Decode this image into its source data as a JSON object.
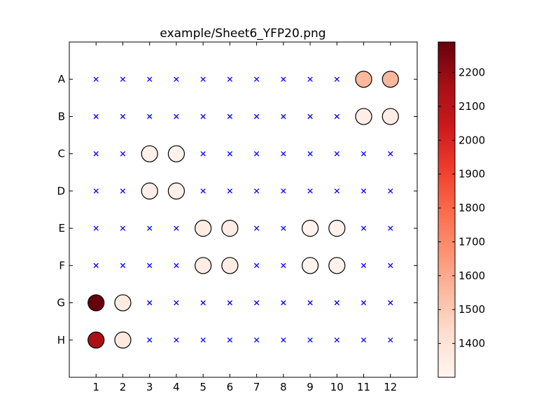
{
  "chart_data": {
    "type": "scatter",
    "title": "example/Sheet6_YFP20.png",
    "xlabel": "",
    "ylabel": "",
    "x_ticks": [
      "1",
      "2",
      "3",
      "4",
      "5",
      "6",
      "7",
      "8",
      "9",
      "10",
      "11",
      "12"
    ],
    "y_ticks": [
      "A",
      "B",
      "C",
      "D",
      "E",
      "F",
      "G",
      "H"
    ],
    "xlim": [
      0,
      13
    ],
    "ylim_rows": [
      "",
      "A",
      "B",
      "C",
      "D",
      "E",
      "F",
      "G",
      "H",
      ""
    ],
    "grid": false,
    "empty_marker": "x",
    "empty_marker_color": "#0000ff",
    "colormap": "Reds",
    "colorbar": {
      "min": 1300,
      "max": 2290,
      "ticks": [
        "1400",
        "1500",
        "1600",
        "1700",
        "1800",
        "1900",
        "2000",
        "2100",
        "2200"
      ]
    },
    "points": [
      {
        "row": "A",
        "col": 11,
        "value": 1555
      },
      {
        "row": "A",
        "col": 12,
        "value": 1560
      },
      {
        "row": "B",
        "col": 11,
        "value": 1340
      },
      {
        "row": "B",
        "col": 12,
        "value": 1345
      },
      {
        "row": "C",
        "col": 3,
        "value": 1330
      },
      {
        "row": "C",
        "col": 4,
        "value": 1320
      },
      {
        "row": "D",
        "col": 3,
        "value": 1335
      },
      {
        "row": "D",
        "col": 4,
        "value": 1325
      },
      {
        "row": "E",
        "col": 5,
        "value": 1350
      },
      {
        "row": "E",
        "col": 6,
        "value": 1345
      },
      {
        "row": "E",
        "col": 9,
        "value": 1310
      },
      {
        "row": "E",
        "col": 10,
        "value": 1315
      },
      {
        "row": "F",
        "col": 5,
        "value": 1345
      },
      {
        "row": "F",
        "col": 6,
        "value": 1345
      },
      {
        "row": "F",
        "col": 9,
        "value": 1312
      },
      {
        "row": "F",
        "col": 10,
        "value": 1318
      },
      {
        "row": "G",
        "col": 1,
        "value": 2290
      },
      {
        "row": "G",
        "col": 2,
        "value": 1360
      },
      {
        "row": "H",
        "col": 1,
        "value": 2150
      },
      {
        "row": "H",
        "col": 2,
        "value": 1370
      }
    ]
  }
}
